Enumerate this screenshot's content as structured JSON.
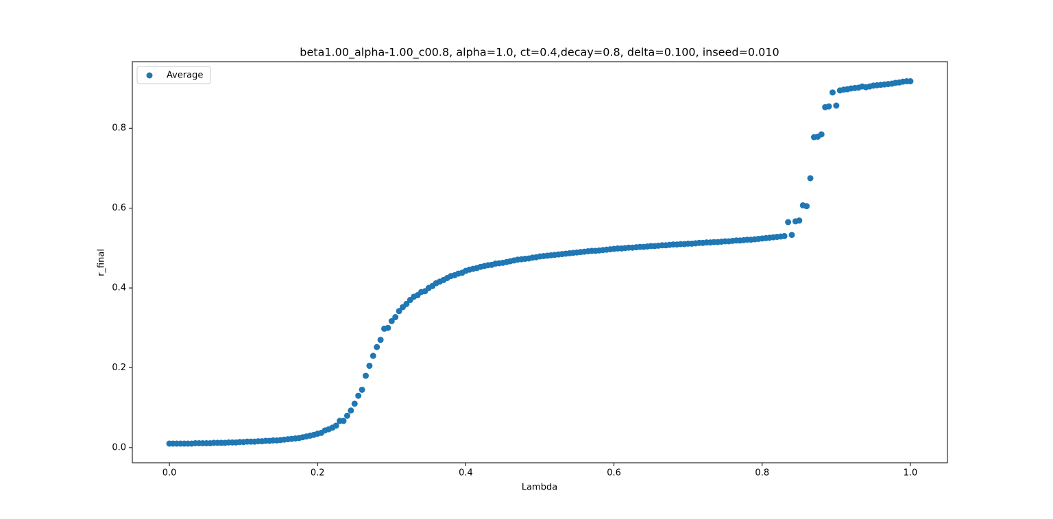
{
  "chart_data": {
    "type": "scatter",
    "title": "beta1.00_alpha-1.00_c00.8, alpha=1.0, ct=0.4,decay=0.8, delta=0.100, inseed=0.010",
    "x_label": "Lambda",
    "y_label": "r_final",
    "xlim": [
      -0.05,
      1.05
    ],
    "ylim": [
      -0.038,
      0.967
    ],
    "xticks": [
      {
        "value": 0,
        "label": "0.0"
      },
      0.2,
      0.4,
      0.6,
      0.8,
      {
        "value": 1,
        "label": "1.0"
      }
    ],
    "yticks": [
      {
        "value": 0,
        "label": "0.0"
      },
      0.2,
      0.4,
      0.6,
      0.8
    ],
    "legend": "upper left",
    "series": [
      {
        "name": "Average",
        "color": "#1f77b4",
        "x": [
          0,
          0.005,
          0.01,
          0.015,
          0.02,
          0.025,
          0.03,
          0.035,
          0.04,
          0.045,
          0.05,
          0.055,
          0.06,
          0.065,
          0.07,
          0.075,
          0.08,
          0.085,
          0.09,
          0.095,
          0.1,
          0.105,
          0.11,
          0.115,
          0.12,
          0.125,
          0.13,
          0.135,
          0.14,
          0.145,
          0.15,
          0.155,
          0.16,
          0.165,
          0.17,
          0.175,
          0.18,
          0.185,
          0.19,
          0.195,
          0.2,
          0.205,
          0.21,
          0.215,
          0.22,
          0.225,
          0.23,
          0.235,
          0.24,
          0.245,
          0.25,
          0.255,
          0.26,
          0.265,
          0.27,
          0.275,
          0.28,
          0.285,
          0.29,
          0.295,
          0.3,
          0.305,
          0.31,
          0.315,
          0.32,
          0.325,
          0.33,
          0.335,
          0.34,
          0.345,
          0.35,
          0.355,
          0.36,
          0.365,
          0.37,
          0.375,
          0.38,
          0.385,
          0.39,
          0.395,
          0.4,
          0.405,
          0.41,
          0.415,
          0.42,
          0.425,
          0.43,
          0.435,
          0.44,
          0.445,
          0.45,
          0.455,
          0.46,
          0.465,
          0.47,
          0.475,
          0.48,
          0.485,
          0.49,
          0.495,
          0.5,
          0.505,
          0.51,
          0.515,
          0.52,
          0.525,
          0.53,
          0.535,
          0.54,
          0.545,
          0.55,
          0.555,
          0.56,
          0.565,
          0.57,
          0.575,
          0.58,
          0.585,
          0.59,
          0.595,
          0.6,
          0.605,
          0.61,
          0.615,
          0.62,
          0.625,
          0.63,
          0.635,
          0.64,
          0.645,
          0.65,
          0.655,
          0.66,
          0.665,
          0.67,
          0.675,
          0.68,
          0.685,
          0.69,
          0.695,
          0.7,
          0.705,
          0.71,
          0.715,
          0.72,
          0.725,
          0.73,
          0.735,
          0.74,
          0.745,
          0.75,
          0.755,
          0.76,
          0.765,
          0.77,
          0.775,
          0.78,
          0.785,
          0.79,
          0.795,
          0.8,
          0.805,
          0.81,
          0.815,
          0.82,
          0.825,
          0.83,
          0.835,
          0.84,
          0.845,
          0.85,
          0.855,
          0.86,
          0.865,
          0.87,
          0.875,
          0.88,
          0.885,
          0.89,
          0.895,
          0.9,
          0.905,
          0.91,
          0.915,
          0.92,
          0.925,
          0.93,
          0.935,
          0.94,
          0.945,
          0.95,
          0.955,
          0.96,
          0.965,
          0.97,
          0.975,
          0.98,
          0.985,
          0.99,
          0.995,
          1
        ],
        "values": [
          0.01,
          0.01,
          0.01,
          0.01,
          0.01,
          0.01,
          0.01,
          0.011,
          0.011,
          0.011,
          0.011,
          0.011,
          0.012,
          0.012,
          0.012,
          0.012,
          0.013,
          0.013,
          0.013,
          0.014,
          0.014,
          0.015,
          0.015,
          0.015,
          0.016,
          0.016,
          0.017,
          0.017,
          0.018,
          0.018,
          0.019,
          0.02,
          0.021,
          0.022,
          0.023,
          0.024,
          0.026,
          0.028,
          0.03,
          0.032,
          0.035,
          0.037,
          0.043,
          0.046,
          0.05,
          0.055,
          0.067,
          0.067,
          0.08,
          0.093,
          0.11,
          0.13,
          0.145,
          0.18,
          0.205,
          0.23,
          0.252,
          0.27,
          0.298,
          0.3,
          0.317,
          0.327,
          0.342,
          0.352,
          0.36,
          0.37,
          0.378,
          0.382,
          0.39,
          0.392,
          0.4,
          0.405,
          0.412,
          0.416,
          0.42,
          0.425,
          0.43,
          0.432,
          0.436,
          0.438,
          0.443,
          0.446,
          0.448,
          0.45,
          0.453,
          0.455,
          0.457,
          0.458,
          0.461,
          0.462,
          0.463,
          0.465,
          0.467,
          0.469,
          0.471,
          0.472,
          0.473,
          0.474,
          0.476,
          0.477,
          0.479,
          0.48,
          0.481,
          0.482,
          0.483,
          0.484,
          0.485,
          0.486,
          0.487,
          0.488,
          0.489,
          0.49,
          0.491,
          0.492,
          0.493,
          0.493,
          0.494,
          0.495,
          0.496,
          0.497,
          0.498,
          0.499,
          0.499,
          0.5,
          0.501,
          0.501,
          0.502,
          0.503,
          0.503,
          0.504,
          0.505,
          0.505,
          0.506,
          0.507,
          0.507,
          0.508,
          0.509,
          0.509,
          0.51,
          0.51,
          0.511,
          0.511,
          0.512,
          0.513,
          0.513,
          0.514,
          0.514,
          0.515,
          0.515,
          0.516,
          0.517,
          0.517,
          0.518,
          0.519,
          0.519,
          0.52,
          0.521,
          0.521,
          0.522,
          0.523,
          0.524,
          0.525,
          0.526,
          0.527,
          0.528,
          0.529,
          0.53,
          0.565,
          0.533,
          0.567,
          0.569,
          0.607,
          0.605,
          0.675,
          0.778,
          0.779,
          0.785,
          0.853,
          0.855,
          0.89,
          0.857,
          0.895,
          0.897,
          0.898,
          0.9,
          0.901,
          0.902,
          0.905,
          0.903,
          0.905,
          0.907,
          0.908,
          0.909,
          0.91,
          0.911,
          0.912,
          0.914,
          0.915,
          0.917,
          0.918,
          0.918
        ]
      }
    ]
  }
}
